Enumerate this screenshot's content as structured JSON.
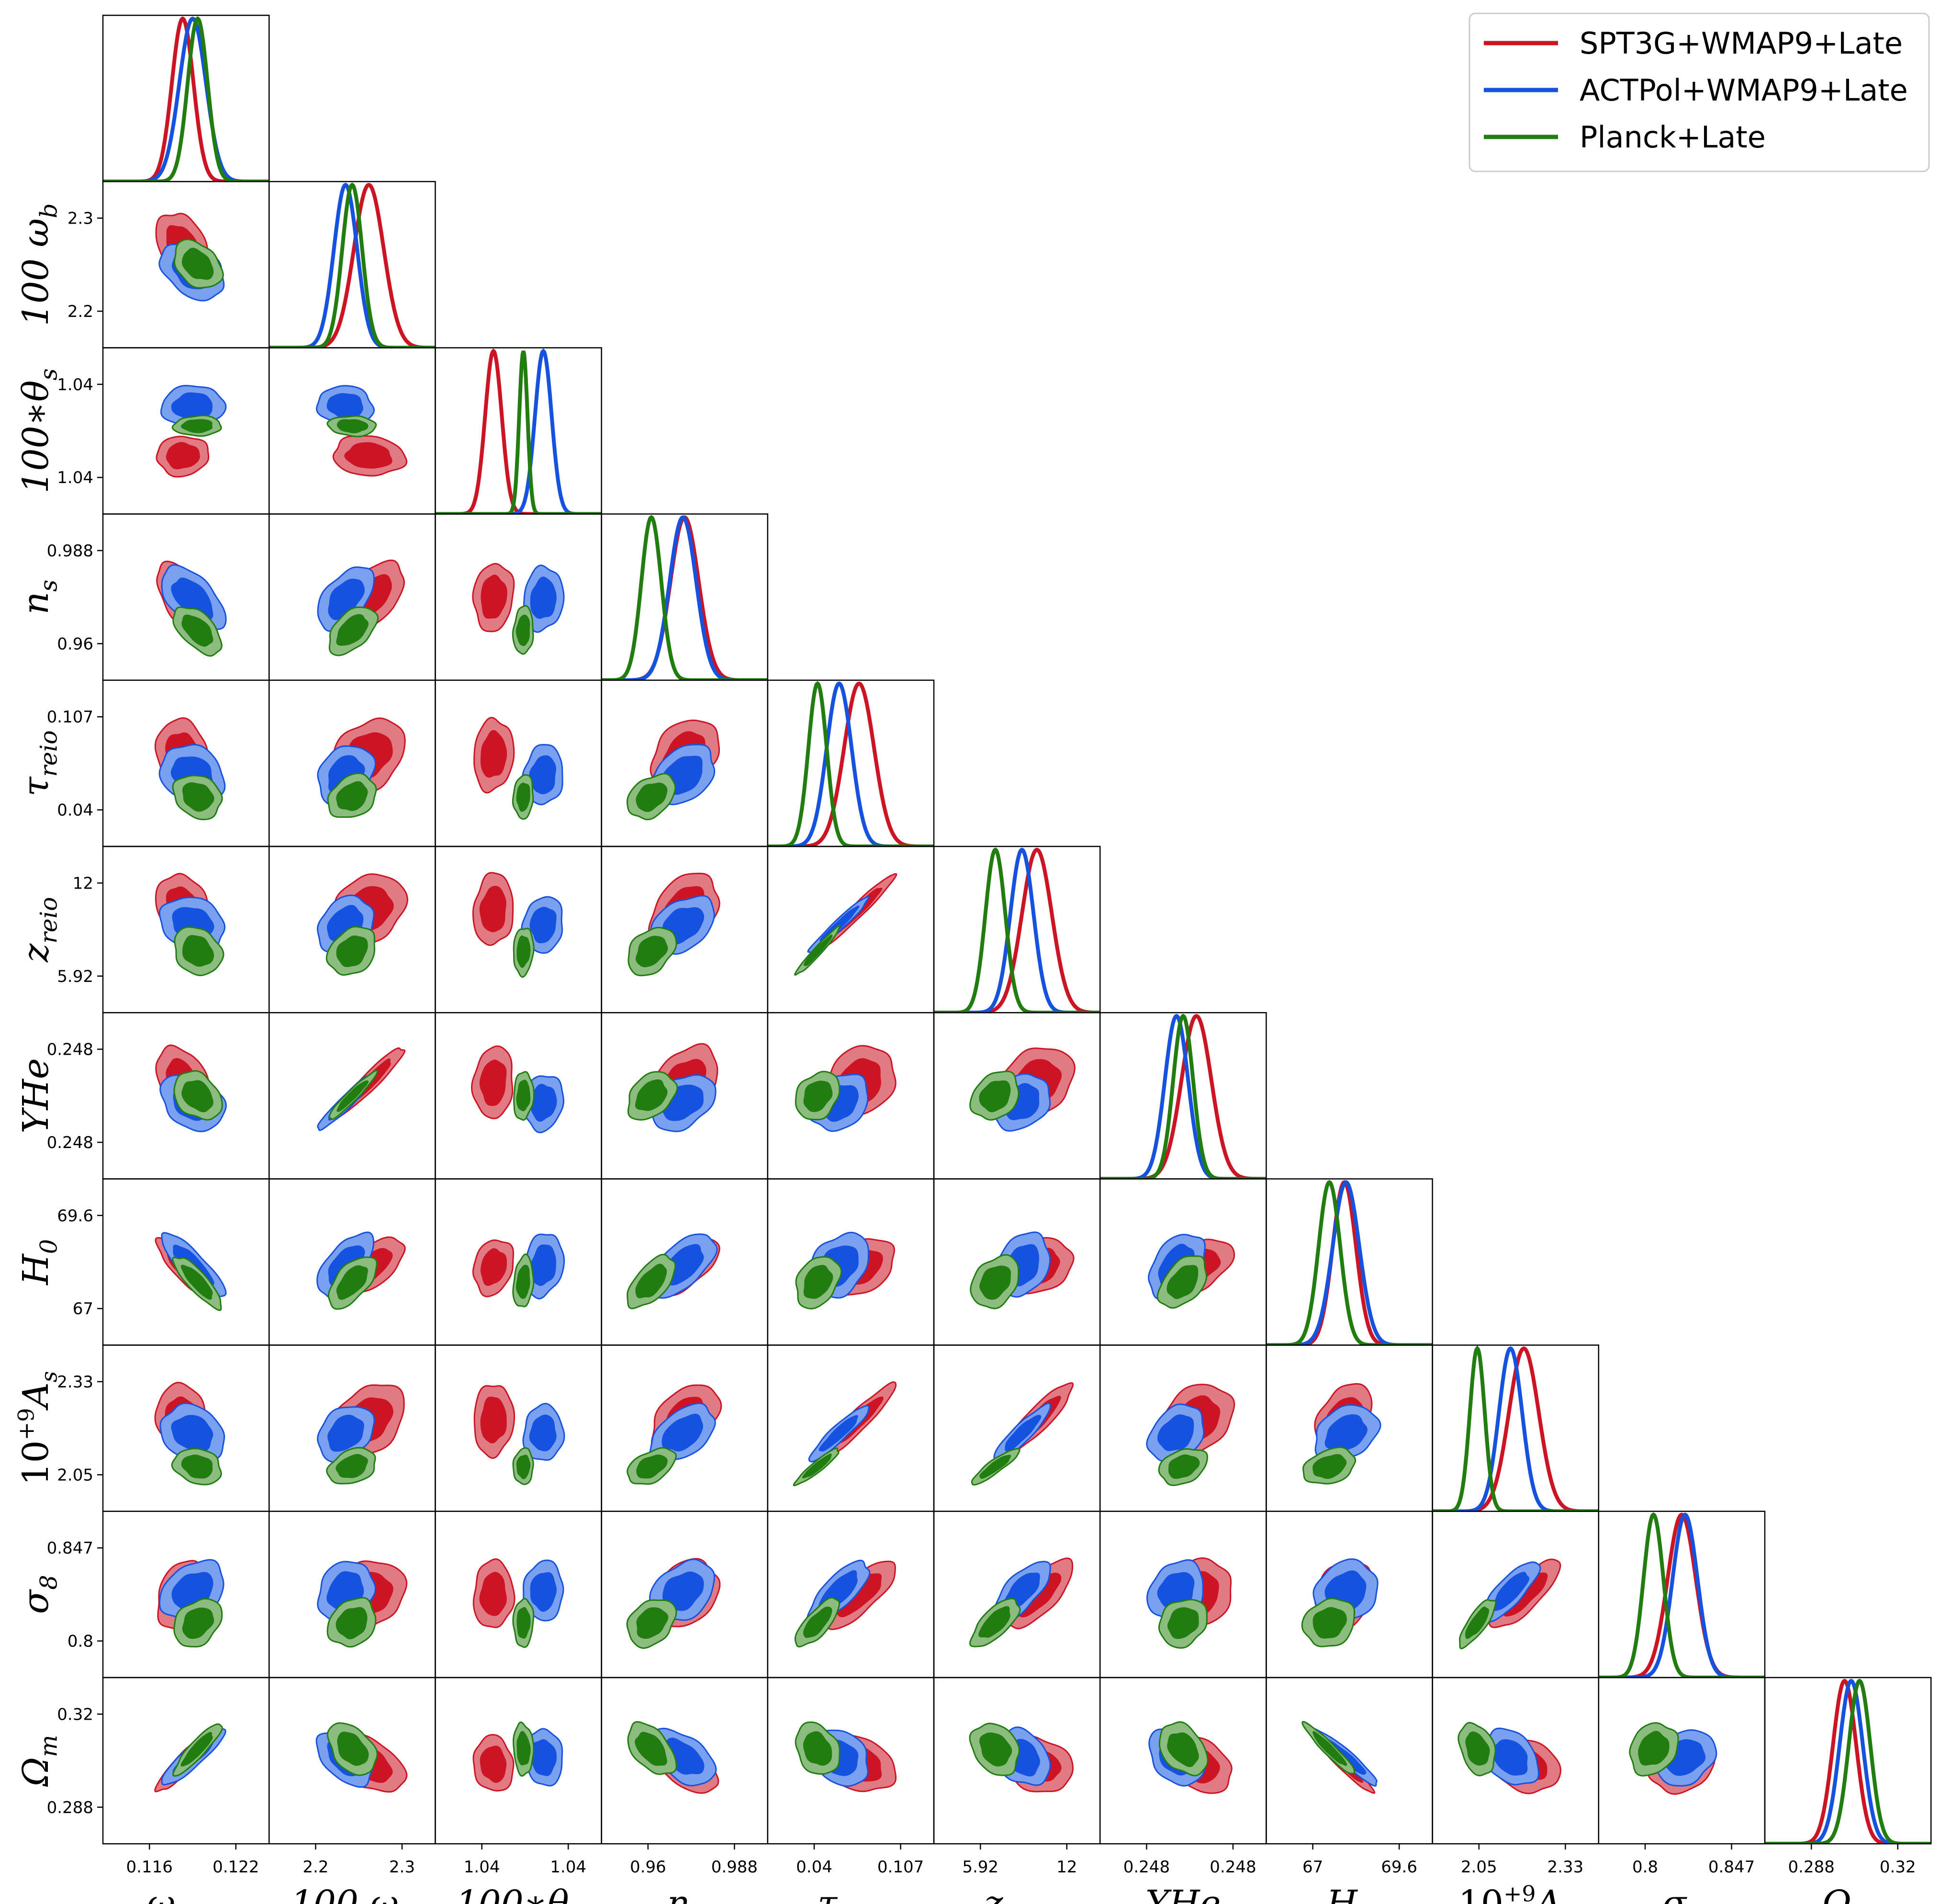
{
  "chart_data": {
    "type": "corner",
    "title": "",
    "colors": {
      "spt": "#cc1424",
      "act": "#1652e0",
      "planck": "#217d10",
      "spt_outer": "#e17a82",
      "act_outer": "#7aa0f0",
      "planck_outer": "#8cbc80"
    },
    "parameters": [
      {
        "key": "omega_cdm",
        "label": "ω_cdm",
        "ticks": [
          "0.116",
          "0.122"
        ],
        "ytick_labels": []
      },
      {
        "key": "omega_b",
        "label": "100 ω_b",
        "ticks": [
          "2.2",
          "2.3"
        ],
        "ytick_labels": [
          "2.3",
          "2.2"
        ]
      },
      {
        "key": "theta_s",
        "label": "100∗θ_s",
        "ticks": [
          "1.04",
          "1.04"
        ],
        "ytick_labels": [
          "1.04",
          "1.04"
        ]
      },
      {
        "key": "n_s",
        "label": "n_s",
        "ticks": [
          "0.96",
          "0.988"
        ],
        "ytick_labels": [
          "0.988",
          "0.96"
        ]
      },
      {
        "key": "tau_reio",
        "label": "τ_reio",
        "ticks": [
          "0.04",
          "0.107"
        ],
        "ytick_labels": [
          "0.107",
          "0.04"
        ]
      },
      {
        "key": "z_reio",
        "label": "z_reio",
        "ticks": [
          "5.92",
          "12"
        ],
        "ytick_labels": [
          "12",
          "5.92"
        ]
      },
      {
        "key": "YHe",
        "label": "YHe",
        "ticks": [
          "0.248",
          "0.248"
        ],
        "ytick_labels": [
          "0.248",
          "0.248"
        ]
      },
      {
        "key": "H0",
        "label": "H_0",
        "ticks": [
          "67",
          "69.6"
        ],
        "ytick_labels": [
          "69.6",
          "67"
        ]
      },
      {
        "key": "A_s",
        "label": "10^{+9}A_s",
        "ticks": [
          "2.05",
          "2.33"
        ],
        "ytick_labels": [
          "2.33",
          "2.05"
        ]
      },
      {
        "key": "sigma8",
        "label": "σ_8",
        "ticks": [
          "0.8",
          "0.847"
        ],
        "ytick_labels": [
          "0.847",
          "0.8"
        ]
      },
      {
        "key": "Omega_m",
        "label": "Ω_m",
        "ticks": [
          "0.288",
          "0.32"
        ],
        "ytick_labels": [
          "0.32",
          "0.288"
        ]
      }
    ],
    "series": [
      {
        "name": "SPT3G+WMAP9+Late",
        "key": "spt",
        "mean": [
          0.48,
          0.6,
          0.35,
          0.5,
          0.55,
          0.62,
          0.58,
          0.47,
          0.55,
          0.5,
          0.48
        ],
        "sigma": [
          0.065,
          0.09,
          0.05,
          0.085,
          0.09,
          0.09,
          0.09,
          0.07,
          0.09,
          0.085,
          0.07
        ]
      },
      {
        "name": "ACTPol+WMAP9+Late",
        "key": "act",
        "mean": [
          0.54,
          0.46,
          0.65,
          0.49,
          0.43,
          0.53,
          0.46,
          0.48,
          0.47,
          0.52,
          0.52
        ],
        "sigma": [
          0.08,
          0.07,
          0.05,
          0.08,
          0.075,
          0.07,
          0.07,
          0.08,
          0.07,
          0.075,
          0.07
        ]
      },
      {
        "name": "Planck+Late",
        "key": "planck",
        "mean": [
          0.57,
          0.5,
          0.53,
          0.3,
          0.3,
          0.37,
          0.5,
          0.38,
          0.27,
          0.33,
          0.57
        ],
        "sigma": [
          0.06,
          0.06,
          0.025,
          0.06,
          0.055,
          0.06,
          0.06,
          0.065,
          0.045,
          0.06,
          0.065
        ]
      }
    ],
    "correlations": [
      [
        0,
        -0.35,
        0.05,
        -0.55,
        -0.2,
        -0.2,
        -0.3,
        -0.85,
        -0.2,
        0.3,
        0.9
      ],
      [
        -0.35,
        0,
        -0.1,
        0.5,
        0.25,
        0.25,
        0.95,
        0.6,
        0.3,
        0.2,
        -0.4
      ],
      [
        0.05,
        -0.1,
        0,
        0.1,
        0.1,
        0.1,
        0.1,
        0.2,
        0.05,
        0.05,
        -0.1
      ],
      [
        -0.55,
        0.5,
        0.1,
        0,
        0.35,
        0.35,
        0.35,
        0.6,
        0.45,
        0.3,
        -0.5
      ],
      [
        -0.2,
        0.25,
        0.1,
        0.35,
        0,
        0.97,
        0.25,
        0.3,
        0.93,
        0.75,
        -0.25
      ],
      [
        -0.2,
        0.25,
        0.1,
        0.35,
        0.97,
        0,
        0.25,
        0.3,
        0.9,
        0.7,
        -0.25
      ],
      [
        -0.3,
        0.95,
        0.1,
        0.35,
        0.25,
        0.25,
        0,
        0.45,
        0.3,
        0.2,
        -0.35
      ],
      [
        -0.85,
        0.6,
        0.2,
        0.6,
        0.3,
        0.3,
        0.45,
        0,
        0.3,
        0.15,
        -0.95
      ],
      [
        -0.2,
        0.3,
        0.05,
        0.45,
        0.93,
        0.9,
        0.3,
        0.3,
        0,
        0.8,
        -0.3
      ],
      [
        0.3,
        0.2,
        0.05,
        0.3,
        0.75,
        0.7,
        0.2,
        0.15,
        0.8,
        0,
        0.2
      ],
      [
        0.9,
        -0.4,
        -0.1,
        -0.5,
        -0.25,
        -0.25,
        -0.35,
        -0.95,
        -0.3,
        0.2,
        0
      ]
    ],
    "legend_position": "top-right"
  }
}
